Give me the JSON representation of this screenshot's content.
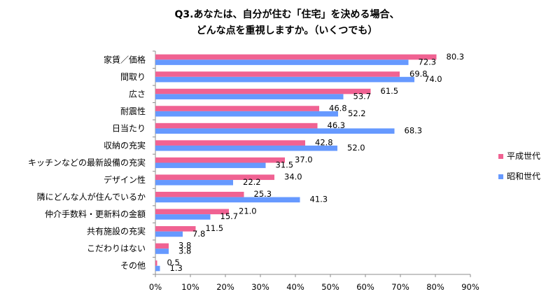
{
  "chart_data": {
    "type": "bar",
    "orientation": "horizontal",
    "title": "Q3.あなたは、自分が住む「住宅」を決める場合、",
    "subtitle": "どんな点を重視しますか。（いくつでも）",
    "categories": [
      "家賃／価格",
      "間取り",
      "広さ",
      "耐震性",
      "日当たり",
      "収納の充実",
      "キッチンなどの最新設備の充実",
      "デザイン性",
      "隣にどんな人が住んでいるか",
      "仲介手数料・更新料の金額",
      "共有施設の充実",
      "こだわりはない",
      "その他"
    ],
    "series": [
      {
        "name": "平成世代",
        "color": "#f06292",
        "values": [
          80.3,
          69.8,
          61.5,
          46.8,
          46.3,
          42.8,
          37.0,
          34.0,
          25.3,
          21.0,
          11.5,
          3.8,
          0.5
        ]
      },
      {
        "name": "昭和世代",
        "color": "#6699ff",
        "values": [
          72.3,
          74.0,
          53.7,
          52.2,
          68.3,
          52.0,
          31.5,
          22.2,
          41.3,
          15.7,
          7.8,
          3.8,
          1.3
        ]
      }
    ],
    "value_labels": [
      [
        "80.3",
        "69.8",
        "61.5",
        "46.8",
        "46.3",
        "42.8",
        "37.0",
        "34.0",
        "25.3",
        "21.0",
        "11.5",
        "3.8",
        "0.5"
      ],
      [
        "72.3",
        "74.0",
        "53.7",
        "52.2",
        "68.3",
        "52.0",
        "31.5",
        "22.2",
        "41.3",
        "15.7",
        "7.8",
        "3.8",
        "1.3"
      ]
    ],
    "xlim": [
      0,
      90
    ],
    "xticks": [
      "0%",
      "10%",
      "20%",
      "30%",
      "40%",
      "50%",
      "60%",
      "70%",
      "80%",
      "90%"
    ],
    "grid": false,
    "legend_position": "right"
  }
}
